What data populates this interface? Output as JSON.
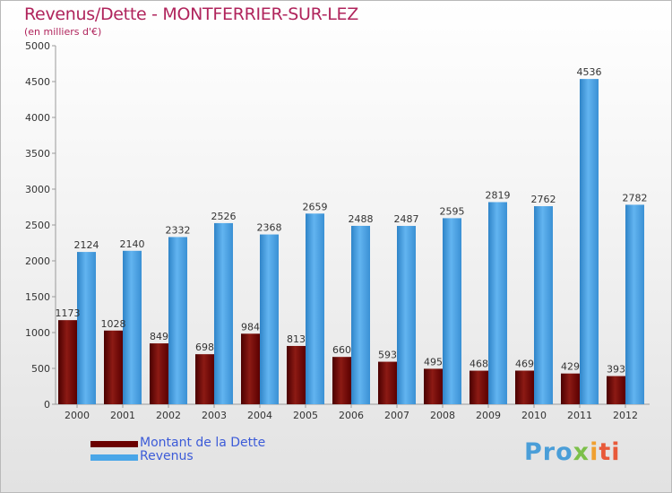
{
  "title": "Revenus/Dette - MONTFERRIER-SUR-LEZ",
  "subtitle": "(en milliers d'€)",
  "logo": {
    "p1": "Pro",
    "p2": "x",
    "p3": "i",
    "p4": "ti"
  },
  "chart_data": {
    "type": "bar",
    "categories": [
      "2000",
      "2001",
      "2002",
      "2003",
      "2004",
      "2005",
      "2006",
      "2007",
      "2008",
      "2009",
      "2010",
      "2011",
      "2012"
    ],
    "series": [
      {
        "name": "Montant de la Dette",
        "color": "#6b0000",
        "values": [
          1173,
          1028,
          849,
          698,
          984,
          813,
          660,
          593,
          495,
          468,
          469,
          429,
          393
        ]
      },
      {
        "name": "Revenus",
        "color": "#4aa6e8",
        "values": [
          2124,
          2140,
          2332,
          2526,
          2368,
          2659,
          2488,
          2487,
          2595,
          2819,
          2762,
          4536,
          2782
        ]
      }
    ],
    "ylim": [
      0,
      5000
    ],
    "yticks": [
      "0",
      "500",
      "1000",
      "1500",
      "2000",
      "2500",
      "3000",
      "3500",
      "4000",
      "4500",
      "5000"
    ],
    "grid": false,
    "legend_position": "bottom-left"
  }
}
